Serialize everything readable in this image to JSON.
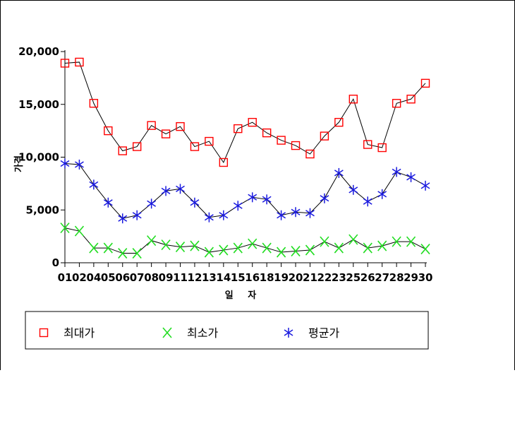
{
  "chart_data": {
    "type": "line",
    "ylabel": "가격",
    "xlabel": "일 자",
    "ylim": [
      0,
      20000
    ],
    "yticks": [
      "0",
      "5,000",
      "10,000",
      "15,000",
      "20,000"
    ],
    "ytick_values": [
      0,
      5000,
      10000,
      15000,
      20000
    ],
    "categories": [
      "01",
      "02",
      "04",
      "05",
      "06",
      "07",
      "08",
      "09",
      "11",
      "12",
      "13",
      "14",
      "15",
      "16",
      "18",
      "19",
      "20",
      "21",
      "22",
      "23",
      "25",
      "26",
      "27",
      "28",
      "29",
      "30"
    ],
    "grid": false,
    "legend_position": "bottom",
    "series": [
      {
        "name": "최대가",
        "marker": "square",
        "color": "#ff0000",
        "values": [
          18900,
          19000,
          15100,
          12500,
          10600,
          11000,
          13000,
          12200,
          12900,
          11000,
          11500,
          9500,
          12700,
          13300,
          12300,
          11600,
          11100,
          10300,
          12000,
          13300,
          15500,
          11200,
          10900,
          15100,
          15500,
          17000
        ]
      },
      {
        "name": "최소가",
        "marker": "x",
        "color": "#22dd22",
        "values": [
          3300,
          3000,
          1400,
          1400,
          900,
          900,
          2100,
          1700,
          1500,
          1600,
          1000,
          1200,
          1400,
          1800,
          1400,
          1000,
          1100,
          1200,
          2000,
          1400,
          2200,
          1400,
          1600,
          2000,
          2000,
          1300
        ]
      },
      {
        "name": "평균가",
        "marker": "asterisk",
        "color": "#1a1adf",
        "values": [
          9400,
          9300,
          7400,
          5700,
          4200,
          4500,
          5600,
          6800,
          7000,
          5700,
          4300,
          4500,
          5400,
          6200,
          6000,
          4500,
          4800,
          4700,
          6100,
          8500,
          6900,
          5800,
          6500,
          8600,
          8100,
          7300
        ]
      }
    ]
  }
}
